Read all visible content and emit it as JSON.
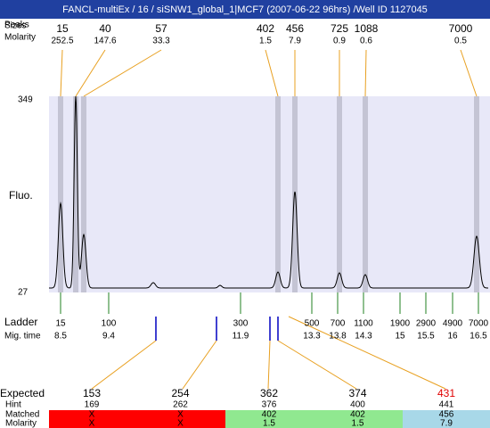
{
  "title": "FANCL-multiEx / 16 / siSNW1_global_1|MCF7 (2007-06-22 96hrs) /Well ID 1127045",
  "peaks": {
    "label_peaks": "Peaks",
    "label_sizes": "Sizes",
    "label_molarity": "Molarity",
    "sizes": [
      15,
      40,
      57,
      402,
      456,
      725,
      1088,
      7000
    ],
    "molarity": [
      252.5,
      147.6,
      33.3,
      1.5,
      7.9,
      0.9,
      0.6,
      0.5
    ]
  },
  "fluo_axis": {
    "label": "Fluo.",
    "max": 349,
    "min": 27
  },
  "ladder": {
    "label": "Ladder",
    "label_mig": "Mig. time",
    "sizes": [
      15,
      100,
      300,
      500,
      700,
      1100,
      1900,
      2900,
      4900,
      7000
    ],
    "mig_times": [
      8.5,
      9.4,
      11.9,
      13.3,
      13.8,
      14.3,
      15,
      15.5,
      16,
      16.5
    ]
  },
  "table": {
    "row_labels": [
      "Expected",
      "Hint",
      "Matched",
      "Molarity"
    ],
    "expected": [
      153,
      254,
      362,
      374,
      431
    ],
    "hint": [
      169,
      262,
      376,
      400,
      441
    ],
    "matched": [
      "X",
      "X",
      402,
      402,
      456
    ],
    "molarity": [
      "X",
      "X",
      1.5,
      1.5,
      7.9
    ]
  }
}
